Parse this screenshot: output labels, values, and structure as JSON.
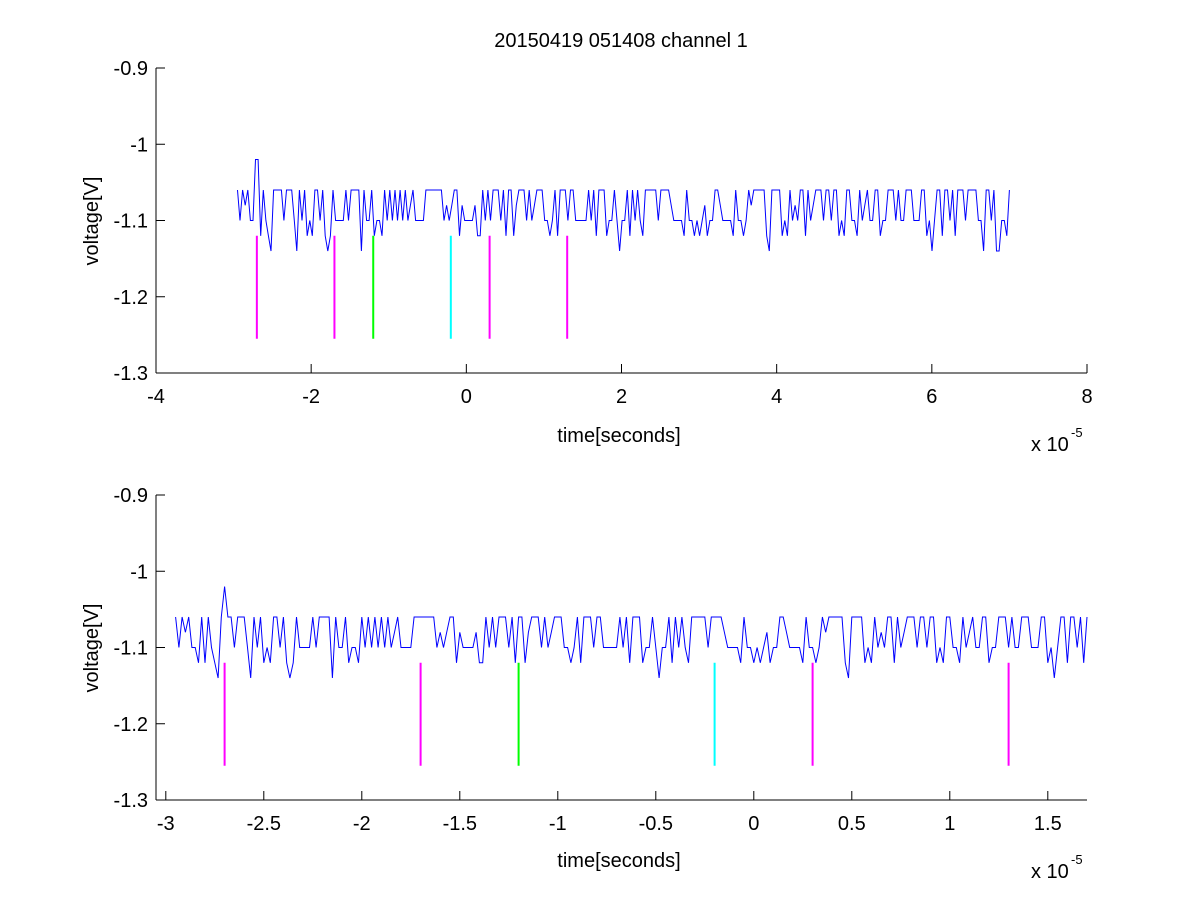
{
  "figure": {
    "title": "20150419 051408 channel 1"
  },
  "chart_data": [
    {
      "type": "line",
      "title": "20150419 051408 channel 1",
      "xlabel": "time[seconds]",
      "ylabel": "voltage[V]",
      "x_exponent_label": "x 10",
      "x_exponent": "-5",
      "xlim": [
        -4,
        8
      ],
      "ylim": [
        -1.3,
        -0.9
      ],
      "xticks": [
        -4,
        -2,
        0,
        2,
        4,
        6,
        8
      ],
      "xtick_labels": [
        "-4",
        "-2",
        "0",
        "2",
        "4",
        "6",
        "8"
      ],
      "yticks": [
        -0.9,
        -1.0,
        -1.1,
        -1.2,
        -1.3
      ],
      "ytick_labels": [
        "-0.9",
        "-1",
        "-1.1",
        "-1.2",
        "-1.3"
      ],
      "grid": false,
      "signal": {
        "color": "#0000ff",
        "x_range": [
          -2.95,
          7.0
        ],
        "baseline": -1.1,
        "high_level": -1.06,
        "low_level": -1.14,
        "spike": {
          "x": -2.7,
          "y": -1.02
        }
      },
      "markers": [
        {
          "x": -2.7,
          "y_top": -1.12,
          "y_bottom": -1.255,
          "color": "#ff00ff"
        },
        {
          "x": -1.7,
          "y_top": -1.12,
          "y_bottom": -1.255,
          "color": "#ff00ff"
        },
        {
          "x": -1.2,
          "y_top": -1.12,
          "y_bottom": -1.255,
          "color": "#00ff00"
        },
        {
          "x": -0.2,
          "y_top": -1.12,
          "y_bottom": -1.255,
          "color": "#00ffff"
        },
        {
          "x": 0.3,
          "y_top": -1.12,
          "y_bottom": -1.255,
          "color": "#ff00ff"
        },
        {
          "x": 1.3,
          "y_top": -1.12,
          "y_bottom": -1.255,
          "color": "#ff00ff"
        }
      ]
    },
    {
      "type": "line",
      "xlabel": "time[seconds]",
      "ylabel": "voltage[V]",
      "x_exponent_label": "x 10",
      "x_exponent": "-5",
      "xlim": [
        -3.05,
        1.7
      ],
      "ylim": [
        -1.3,
        -0.9
      ],
      "xticks": [
        -3,
        -2.5,
        -2,
        -1.5,
        -1,
        -0.5,
        0,
        0.5,
        1,
        1.5
      ],
      "xtick_labels": [
        "-3",
        "-2.5",
        "-2",
        "-1.5",
        "-1",
        "-0.5",
        "0",
        "0.5",
        "1",
        "1.5"
      ],
      "yticks": [
        -0.9,
        -1.0,
        -1.1,
        -1.2,
        -1.3
      ],
      "ytick_labels": [
        "-0.9",
        "-1",
        "-1.1",
        "-1.2",
        "-1.3"
      ],
      "grid": false,
      "signal": {
        "color": "#0000ff",
        "x_range": [
          -2.95,
          1.7
        ],
        "baseline": -1.1,
        "high_level": -1.06,
        "low_level": -1.14,
        "spike": {
          "x": -2.7,
          "y": -1.02
        }
      },
      "markers": [
        {
          "x": -2.7,
          "y_top": -1.12,
          "y_bottom": -1.255,
          "color": "#ff00ff"
        },
        {
          "x": -1.7,
          "y_top": -1.12,
          "y_bottom": -1.255,
          "color": "#ff00ff"
        },
        {
          "x": -1.2,
          "y_top": -1.12,
          "y_bottom": -1.255,
          "color": "#00ff00"
        },
        {
          "x": -0.2,
          "y_top": -1.12,
          "y_bottom": -1.255,
          "color": "#00ffff"
        },
        {
          "x": 0.3,
          "y_top": -1.12,
          "y_bottom": -1.255,
          "color": "#ff00ff"
        },
        {
          "x": 1.3,
          "y_top": -1.12,
          "y_bottom": -1.255,
          "color": "#ff00ff"
        }
      ]
    }
  ]
}
